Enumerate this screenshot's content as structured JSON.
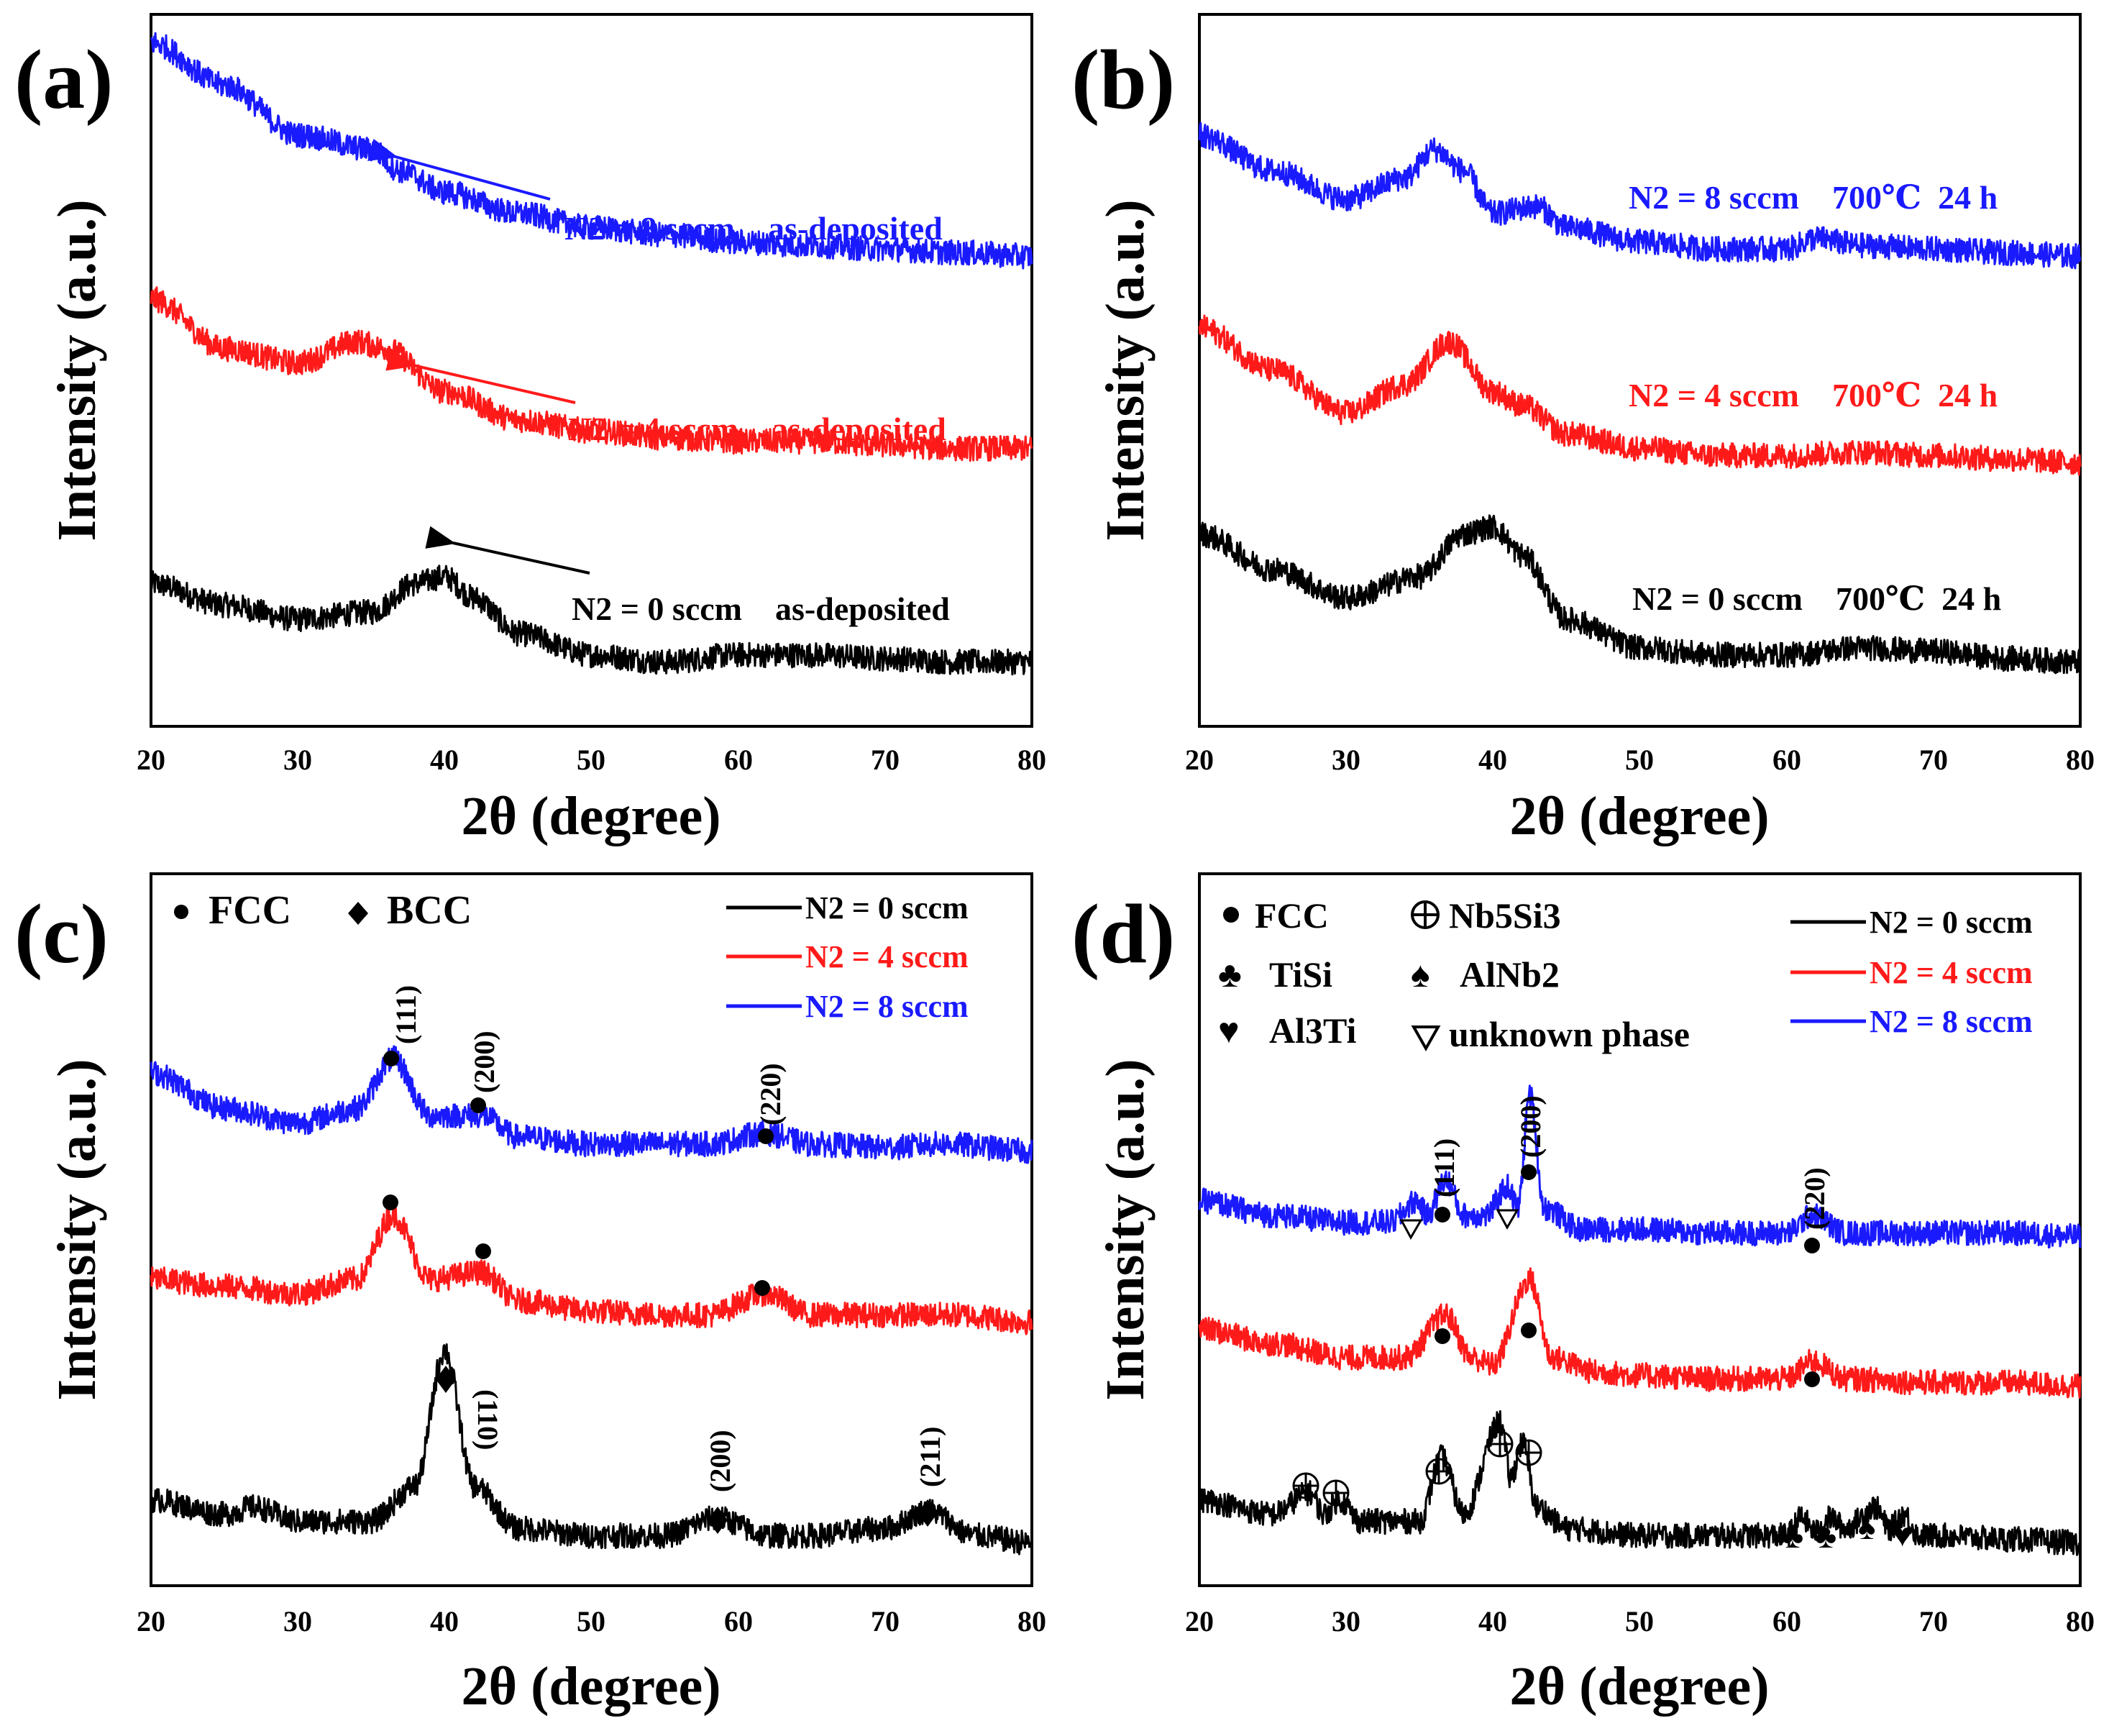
{
  "figure": {
    "axis_title_x": "2θ (degree)",
    "axis_title_y": "Intensity (a.u.)",
    "colors": {
      "black": "#000000",
      "red": "#ff1a1a",
      "blue": "#1a1aff"
    }
  },
  "chart_data": [
    {
      "panel": "(a)",
      "type": "line",
      "xlabel": "2θ (degree)",
      "ylabel": "Intensity (a.u.)",
      "xlim": [
        20,
        80
      ],
      "xticks": [
        "20",
        "30",
        "40",
        "50",
        "60",
        "70",
        "80"
      ],
      "series": [
        {
          "name": "N2 = 0 sccm    as-deposited",
          "color": "#000000",
          "offset": 0.05,
          "x": [
            20,
            25,
            30,
            35,
            38,
            40,
            42,
            45,
            50,
            55,
            60,
            65,
            70,
            75,
            80
          ],
          "y": [
            0.11,
            0.08,
            0.06,
            0.07,
            0.11,
            0.12,
            0.09,
            0.04,
            0.01,
            0.0,
            0.01,
            0.01,
            0.005,
            0.0,
            0.0
          ]
        },
        {
          "name": "N2 = 4 sccm    as-deposited",
          "color": "#ff1a1a",
          "offset": 0.35,
          "x": [
            20,
            25,
            30,
            34,
            36,
            40,
            45,
            50,
            55,
            60,
            65,
            70,
            75,
            80
          ],
          "y": [
            0.21,
            0.14,
            0.12,
            0.15,
            0.14,
            0.08,
            0.04,
            0.025,
            0.015,
            0.01,
            0.01,
            0.005,
            0.0,
            0.0
          ]
        },
        {
          "name": "N2 = 8 sccm    as-deposited",
          "color": "#1a1aff",
          "offset": 0.62,
          "x": [
            20,
            25,
            30,
            35,
            37,
            40,
            45,
            50,
            55,
            60,
            65,
            70,
            75,
            80
          ],
          "y": [
            0.3,
            0.24,
            0.17,
            0.15,
            0.12,
            0.09,
            0.06,
            0.04,
            0.03,
            0.02,
            0.015,
            0.01,
            0.005,
            0.0
          ]
        }
      ],
      "annotations": [
        {
          "type": "arrow",
          "series": "N2 = 0 sccm    as-deposited"
        },
        {
          "type": "arrow",
          "series": "N2 = 4 sccm    as-deposited"
        },
        {
          "type": "arrow",
          "series": "N2 = 8 sccm    as-deposited"
        }
      ]
    },
    {
      "panel": "(b)",
      "type": "line",
      "xlabel": "2θ (degree)",
      "ylabel": "Intensity (a.u.)",
      "xlim": [
        20,
        80
      ],
      "xticks": [
        "20",
        "30",
        "40",
        "50",
        "60",
        "70",
        "80"
      ],
      "series": [
        {
          "name": "N2 = 0 sccm    700℃  24 h",
          "color": "#000000",
          "offset": 0.05,
          "x": [
            20,
            25,
            30,
            35,
            38,
            40,
            42,
            45,
            50,
            55,
            60,
            65,
            70,
            75,
            80
          ],
          "y": [
            0.18,
            0.13,
            0.09,
            0.12,
            0.18,
            0.19,
            0.15,
            0.06,
            0.02,
            0.01,
            0.01,
            0.02,
            0.015,
            0.005,
            0.0
          ]
        },
        {
          "name": "N2 = 4 sccm    700℃  24 h",
          "color": "#ff1a1a",
          "offset": 0.33,
          "x": [
            20,
            25,
            30,
            34,
            37,
            40,
            42,
            45,
            50,
            55,
            60,
            65,
            70,
            75,
            80
          ],
          "y": [
            0.19,
            0.13,
            0.07,
            0.11,
            0.17,
            0.1,
            0.08,
            0.04,
            0.02,
            0.01,
            0.01,
            0.015,
            0.01,
            0.005,
            0.0
          ]
        },
        {
          "name": "N2 = 8 sccm    700℃  24 h",
          "color": "#1a1aff",
          "offset": 0.62,
          "x": [
            20,
            25,
            30,
            34,
            36,
            38,
            40,
            43,
            45,
            50,
            55,
            60,
            62,
            65,
            70,
            75,
            80
          ],
          "y": [
            0.17,
            0.12,
            0.08,
            0.11,
            0.15,
            0.12,
            0.06,
            0.07,
            0.04,
            0.02,
            0.01,
            0.01,
            0.025,
            0.015,
            0.01,
            0.005,
            0.0
          ]
        }
      ]
    },
    {
      "panel": "(c)",
      "type": "line",
      "xlabel": "2θ (degree)",
      "ylabel": "Intensity (a.u.)",
      "xlim": [
        20,
        80
      ],
      "xticks": [
        "20",
        "30",
        "40",
        "50",
        "60",
        "70",
        "80"
      ],
      "legend_markers": {
        "fcc": "FCC",
        "bcc": "BCC"
      },
      "series": [
        {
          "name": "N2 = 0 sccm",
          "color": "#000000",
          "offset": 0.02,
          "x": [
            20,
            25,
            27,
            30,
            35,
            38,
            40,
            42,
            45,
            50,
            55,
            58.5,
            62,
            65,
            70,
            73,
            76,
            80
          ],
          "y": [
            0.06,
            0.04,
            0.05,
            0.03,
            0.03,
            0.08,
            0.27,
            0.08,
            0.02,
            0.01,
            0.01,
            0.035,
            0.01,
            0.01,
            0.02,
            0.045,
            0.01,
            0.0
          ]
        },
        {
          "name": "N2 = 4 sccm",
          "color": "#ff1a1a",
          "offset": 0.33,
          "x": [
            20,
            25,
            30,
            34,
            36.5,
            39,
            42.5,
            45,
            50,
            55,
            58,
            61.8,
            65,
            70,
            75,
            80
          ],
          "y": [
            0.06,
            0.05,
            0.04,
            0.06,
            0.15,
            0.06,
            0.07,
            0.03,
            0.015,
            0.01,
            0.01,
            0.04,
            0.01,
            0.01,
            0.01,
            0.0
          ]
        },
        {
          "name": "N2 = 8 sccm",
          "color": "#1a1aff",
          "offset": 0.57,
          "x": [
            20,
            25,
            30,
            34,
            36.5,
            39,
            42.5,
            45,
            50,
            55,
            58,
            61.8,
            65,
            70,
            74,
            80
          ],
          "y": [
            0.11,
            0.06,
            0.04,
            0.06,
            0.13,
            0.05,
            0.05,
            0.02,
            0.01,
            0.01,
            0.01,
            0.025,
            0.01,
            0.005,
            0.01,
            0.0
          ]
        }
      ],
      "peak_labels": [
        "(111)",
        "(200)",
        "(220)",
        "(110)",
        "(200)",
        "(211)"
      ]
    },
    {
      "panel": "(d)",
      "type": "line",
      "xlabel": "2θ (degree)",
      "ylabel": "Intensity (a.u.)",
      "xlim": [
        20,
        80
      ],
      "xticks": [
        "20",
        "30",
        "40",
        "50",
        "60",
        "70",
        "80"
      ],
      "legend_markers": {
        "fcc": "FCC",
        "nb5si3": "Nb5Si3",
        "tisi": "TiSi",
        "alnb2": "AlNb2",
        "al3ti": "Al3Ti",
        "unknown": "unknown phase"
      },
      "series": [
        {
          "name": "N2 = 0 sccm",
          "color": "#000000",
          "offset": 0.02,
          "x": [
            20,
            25,
            27.5,
            28.5,
            29.5,
            31,
            35,
            36.5,
            38,
            40.5,
            41.2,
            42,
            43,
            45,
            50,
            55,
            60,
            61,
            62,
            63,
            64,
            66,
            67,
            68,
            69,
            70,
            75,
            80
          ],
          "y": [
            0.06,
            0.04,
            0.07,
            0.04,
            0.06,
            0.03,
            0.03,
            0.12,
            0.04,
            0.17,
            0.09,
            0.14,
            0.05,
            0.02,
            0.01,
            0.01,
            0.01,
            0.035,
            0.015,
            0.035,
            0.02,
            0.05,
            0.02,
            0.04,
            0.01,
            0.01,
            0.005,
            0.0
          ]
        },
        {
          "name": "N2 = 4 sccm",
          "color": "#ff1a1a",
          "offset": 0.24,
          "x": [
            20,
            25,
            30,
            34,
            36.8,
            38.5,
            40,
            42.5,
            44,
            47,
            50,
            55,
            60,
            61.8,
            64,
            70,
            75,
            80
          ],
          "y": [
            0.08,
            0.06,
            0.04,
            0.04,
            0.1,
            0.04,
            0.03,
            0.15,
            0.04,
            0.02,
            0.015,
            0.01,
            0.01,
            0.035,
            0.01,
            0.005,
            0.005,
            0.0
          ]
        },
        {
          "name": "N2 = 8 sccm",
          "color": "#1a1aff",
          "offset": 0.45,
          "x": [
            20,
            25,
            30,
            33,
            34.8,
            35.5,
            36.8,
            38,
            39.5,
            41,
            41.7,
            42.5,
            43.5,
            46,
            50,
            55,
            60,
            61.8,
            64,
            70,
            75,
            80
          ],
          "y": [
            0.05,
            0.03,
            0.02,
            0.02,
            0.05,
            0.03,
            0.08,
            0.03,
            0.03,
            0.07,
            0.04,
            0.2,
            0.04,
            0.01,
            0.01,
            0.005,
            0.005,
            0.03,
            0.005,
            0.005,
            0.005,
            0.0
          ]
        }
      ],
      "peak_labels": [
        "(111)",
        "(200)",
        "(220)"
      ]
    }
  ]
}
